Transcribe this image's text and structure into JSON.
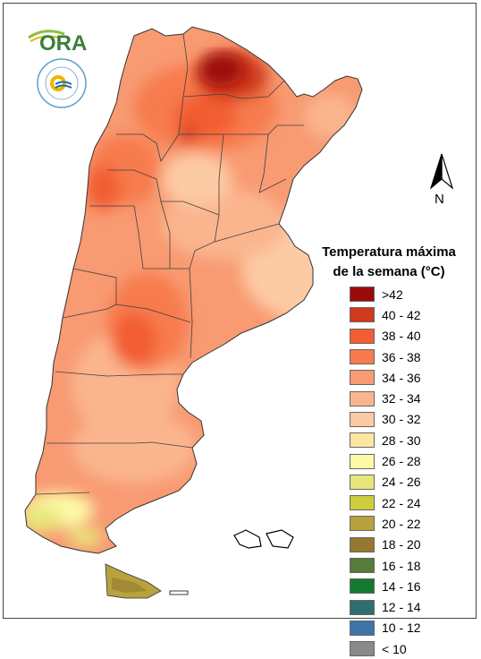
{
  "logos": {
    "ora": {
      "text": "ORA",
      "colors": {
        "text": "#3b7f3a",
        "swoosh": "#8dbf3f",
        "accent": "#f0b400"
      }
    },
    "smn": {
      "ring_text": "SERVICIO METEOROLOGICO NACIONAL",
      "bottom_text": "ARGENTINA",
      "colors": {
        "ring": "#5aa0d0",
        "sun": "#f0b400",
        "waves": "#1f6fb0"
      }
    }
  },
  "compass": {
    "label": "N",
    "icon": "north-arrow-icon"
  },
  "legend": {
    "title_line1": "Temperatura máxima",
    "title_line2": "de la semana (°C)",
    "items": [
      {
        "label": ">42",
        "color": "#9b0a0a"
      },
      {
        "label": "40 - 42",
        "color": "#cf3a1e"
      },
      {
        "label": "38 - 40",
        "color": "#f25d33"
      },
      {
        "label": "36 - 38",
        "color": "#f77b4e"
      },
      {
        "label": "34 - 36",
        "color": "#f89a72"
      },
      {
        "label": "32 - 34",
        "color": "#fab58e"
      },
      {
        "label": "30 - 32",
        "color": "#fccaa4"
      },
      {
        "label": "28 - 30",
        "color": "#fde6a3"
      },
      {
        "label": "26 - 28",
        "color": "#fcfaa7"
      },
      {
        "label": "24 - 26",
        "color": "#e7e67a"
      },
      {
        "label": "22 - 24",
        "color": "#cdcd3e"
      },
      {
        "label": "20 - 22",
        "color": "#b7a23d"
      },
      {
        "label": "18 - 20",
        "color": "#94782f"
      },
      {
        "label": "16 - 18",
        "color": "#587a3a"
      },
      {
        "label": "14 - 16",
        "color": "#137a32"
      },
      {
        "label": "12 - 14",
        "color": "#2f6e6e"
      },
      {
        "label": "10 - 12",
        "color": "#3f74a9"
      },
      {
        "label": "< 10",
        "color": "#8a8a8a"
      }
    ]
  },
  "map": {
    "colors": {
      "border": "#333333",
      "province_line": "#404040"
    }
  }
}
